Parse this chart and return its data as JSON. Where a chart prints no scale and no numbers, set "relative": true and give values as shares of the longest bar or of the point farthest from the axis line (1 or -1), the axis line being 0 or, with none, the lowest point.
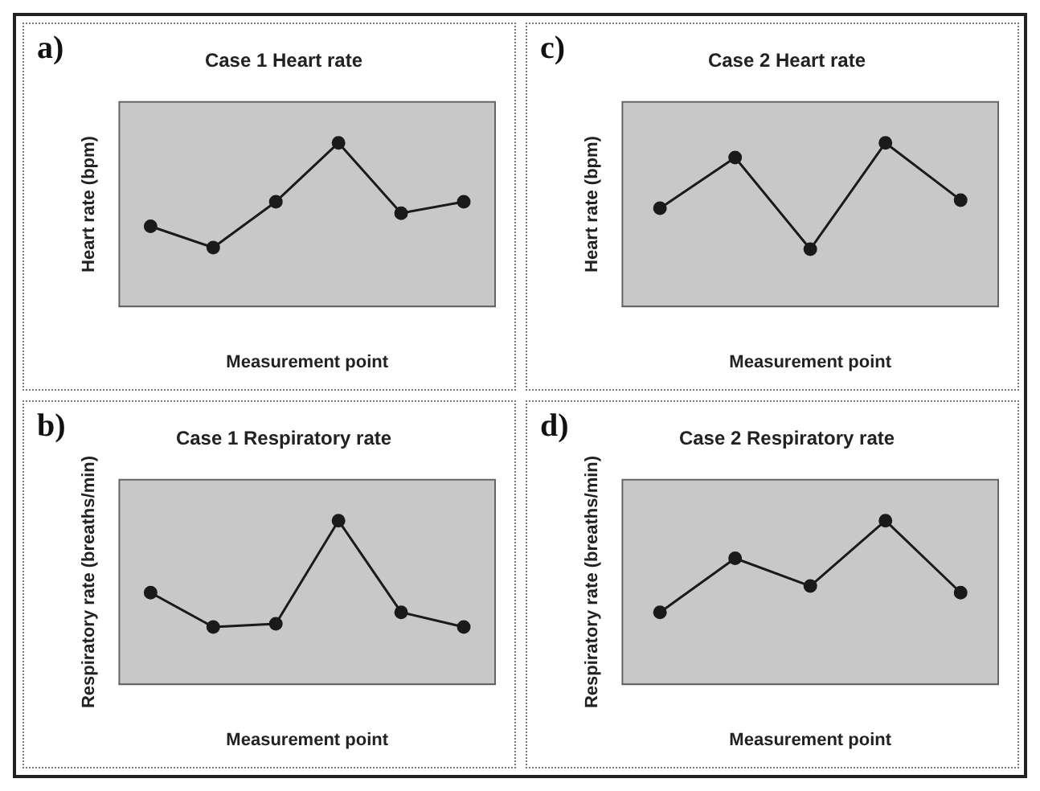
{
  "chart_data": [
    {
      "type": "line",
      "title": "Case 1 Heart rate",
      "xlabel": "Measurement point",
      "ylabel": "Heart rate (bpm)",
      "annotations": [
        "a)"
      ],
      "categories": [
        null,
        null,
        null,
        null,
        null,
        null
      ],
      "relative": true,
      "marker": "circle",
      "series": [
        {
          "color": "#1a1a1a",
          "values": [
            0.49,
            0.36,
            0.64,
            1,
            0.57,
            0.64
          ]
        }
      ]
    },
    {
      "type": "line",
      "title": "Case 2 Heart rate",
      "xlabel": "Measurement point",
      "ylabel": "Heart rate (bpm)",
      "annotations": [
        "c)"
      ],
      "categories": [
        null,
        null,
        null,
        null,
        null
      ],
      "relative": true,
      "marker": "circle",
      "series": [
        {
          "color": "#1a1a1a",
          "values": [
            0.6,
            0.91,
            0.35,
            1,
            0.65
          ]
        }
      ]
    },
    {
      "type": "line",
      "title": "Case 1 Respiratory rate",
      "xlabel": "Measurement point",
      "ylabel": "Respiratory rate (breaths/min)",
      "annotations": [
        "b)"
      ],
      "categories": [
        null,
        null,
        null,
        null,
        null,
        null
      ],
      "relative": true,
      "marker": "circle",
      "series": [
        {
          "color": "#1a1a1a",
          "values": [
            0.56,
            0.35,
            0.37,
            1,
            0.44,
            0.35
          ]
        }
      ]
    },
    {
      "type": "line",
      "title": "Case 2 Respiratory rate",
      "xlabel": "Measurement point",
      "ylabel": "Respiratory rate (breaths/min)",
      "annotations": [
        "d)"
      ],
      "categories": [
        null,
        null,
        null,
        null,
        null
      ],
      "relative": true,
      "marker": "circle",
      "series": [
        {
          "color": "#1a1a1a",
          "values": [
            0.44,
            0.77,
            0.6,
            1,
            0.56
          ]
        }
      ]
    }
  ]
}
